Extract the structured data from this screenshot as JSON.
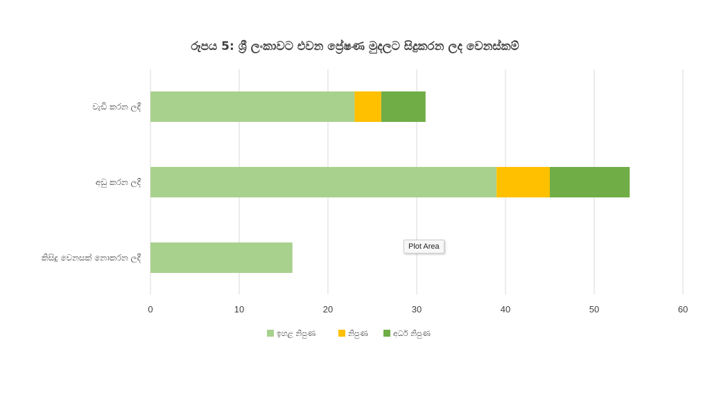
{
  "chart_data": {
    "type": "bar",
    "orientation": "horizontal",
    "stacked": true,
    "title": "රූපය 5: ශ්‍රී ලංකාවට එවන ප්‍රේෂණ මුදලට සිදුකරන ලද වෙනස්කම්",
    "categories": [
      "වැඩි කරන ලදී",
      "අඩු කරන ලදී",
      "කිසිදු වෙනසක් නොකරන ලදී"
    ],
    "series": [
      {
        "name": "ඉහළ නිපුණ",
        "color": "#a9d18e",
        "values": [
          23,
          39,
          16
        ]
      },
      {
        "name": "නිපුණ",
        "color": "#ffc000",
        "values": [
          3,
          6,
          0
        ]
      },
      {
        "name": "අර්ධ නිපුණ",
        "color": "#70ad47",
        "values": [
          5,
          9,
          0
        ]
      }
    ],
    "xlim": [
      0,
      60
    ],
    "xticks": [
      "0",
      "10",
      "20",
      "30",
      "40",
      "50",
      "60"
    ],
    "grid": true,
    "legend_position": "bottom"
  },
  "tooltip": {
    "text": "Plot Area"
  }
}
